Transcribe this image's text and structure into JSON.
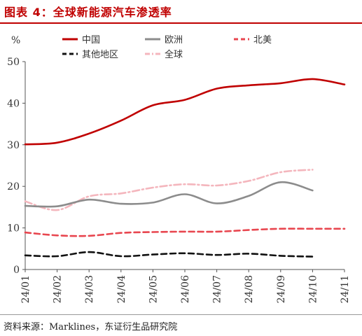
{
  "title": "图表 4：全球新能源汽车渗透率",
  "source": "资料来源：Marklines，东证衍生品研究院",
  "chart_data": {
    "type": "line",
    "ylabel": "%",
    "ylim": [
      0,
      50
    ],
    "yticks": [
      0,
      10,
      20,
      30,
      40,
      50
    ],
    "categories": [
      "24/01",
      "24/02",
      "24/03",
      "24/04",
      "24/05",
      "24/06",
      "24/07",
      "24/08",
      "24/09",
      "24/10",
      "24/11"
    ],
    "legend_position": "top",
    "series": [
      {
        "name": "中国",
        "color": "#c00000",
        "dash": "solid",
        "values": [
          30.1,
          30.5,
          32.7,
          35.8,
          39.5,
          40.8,
          43.5,
          44.3,
          44.8,
          45.8,
          44.5
        ]
      },
      {
        "name": "欧洲",
        "color": "#8c8c8c",
        "dash": "solid",
        "values": [
          15.3,
          15.2,
          16.8,
          15.8,
          16.1,
          18.1,
          15.9,
          17.7,
          21.0,
          19.0,
          null
        ]
      },
      {
        "name": "北美",
        "color": "#e8464f",
        "dash": "dash",
        "values": [
          8.9,
          8.2,
          8.1,
          8.8,
          9.0,
          9.1,
          9.1,
          9.5,
          9.8,
          9.8,
          9.8
        ]
      },
      {
        "name": "其他地区",
        "color": "#111111",
        "dash": "dash",
        "values": [
          3.4,
          3.2,
          4.2,
          3.2,
          3.6,
          3.9,
          3.5,
          3.8,
          3.3,
          3.1,
          null
        ]
      },
      {
        "name": "全球",
        "color": "#f4b6bd",
        "dash": "dashdot",
        "values": [
          16.4,
          14.3,
          17.6,
          18.3,
          19.7,
          20.5,
          20.2,
          21.3,
          23.4,
          24.0,
          null
        ]
      }
    ]
  }
}
